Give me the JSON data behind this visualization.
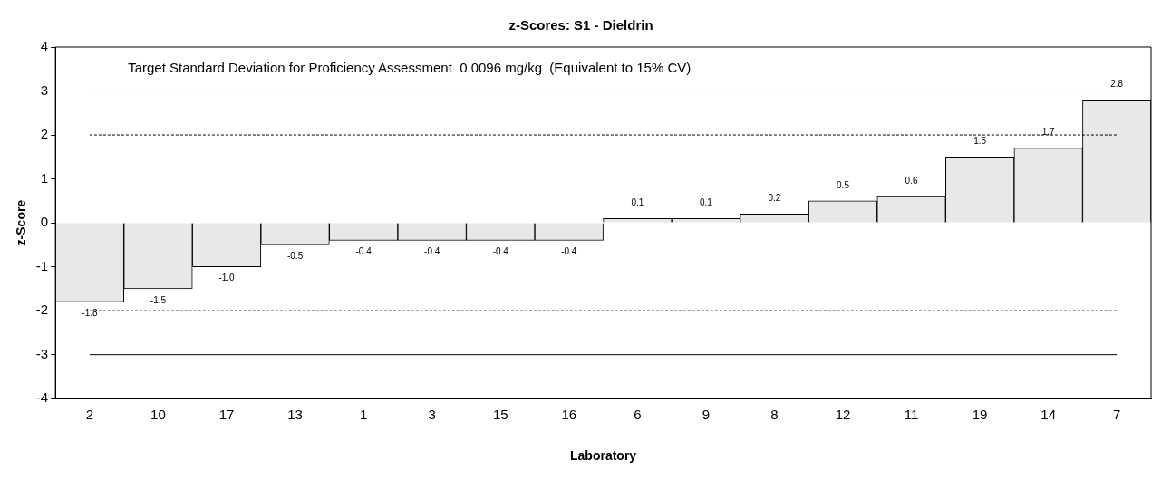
{
  "chart_data": {
    "type": "bar",
    "title": "z-Scores: S1 - Dieldrin",
    "xlabel": "Laboratory",
    "ylabel": "z-Score",
    "categories": [
      "2",
      "10",
      "17",
      "13",
      "1",
      "3",
      "15",
      "16",
      "6",
      "9",
      "8",
      "12",
      "11",
      "19",
      "14",
      "7"
    ],
    "values": [
      -1.8,
      -1.5,
      -1.0,
      -0.5,
      -0.4,
      -0.4,
      -0.4,
      -0.4,
      0.1,
      0.1,
      0.2,
      0.5,
      0.6,
      1.5,
      1.7,
      2.8
    ],
    "value_labels": [
      "-1.8",
      "-1.5",
      "-1.0",
      "-0.5",
      "-0.4",
      "-0.4",
      "-0.4",
      "-0.4",
      "0.1",
      "0.1",
      "0.2",
      "0.5",
      "0.6",
      "1.5",
      "1.7",
      "2.8"
    ],
    "color": "#e8e8e8",
    "ylim": [
      -4,
      4
    ],
    "yticks": [
      -4,
      -3,
      -2,
      -1,
      0,
      1,
      2,
      3,
      4
    ],
    "grid": false,
    "legend": false,
    "ref_lines": [
      {
        "axis": "y",
        "value": 3,
        "line_style": "solid",
        "color": "#000000"
      },
      {
        "axis": "y",
        "value": 2,
        "line_style": "dashed",
        "color": "#000000"
      },
      {
        "axis": "y",
        "value": -2,
        "line_style": "dashed",
        "color": "#000000"
      },
      {
        "axis": "y",
        "value": -3,
        "line_style": "solid",
        "color": "#000000"
      }
    ],
    "annotations": [
      "Target Standard Deviation for Proficiency Assessment  0.0096 mg/kg  (Equivalent to 15% CV)"
    ]
  }
}
